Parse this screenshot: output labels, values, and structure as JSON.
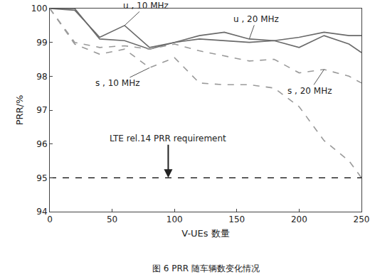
{
  "chart_data": {
    "type": "line",
    "caption": "图 6 PRR 随车辆数变化情况",
    "x_label": "V-UEs 数量",
    "y_label": "PRR/%",
    "x": [
      0,
      20,
      40,
      60,
      80,
      100,
      120,
      140,
      160,
      180,
      200,
      220,
      240,
      250
    ],
    "series": [
      {
        "name": "u , 10 MHz",
        "color": "#6a6a6a",
        "line_style": "solid",
        "values": [
          100,
          99.95,
          99.15,
          99.5,
          98.85,
          99.0,
          99.1,
          99.05,
          99.0,
          99.05,
          98.85,
          99.2,
          98.95,
          98.7
        ]
      },
      {
        "name": "u , 20 MHz",
        "color": "#6a6a6a",
        "line_style": "solid",
        "values": [
          100,
          100,
          99.1,
          99.05,
          98.8,
          99.0,
          99.2,
          99.3,
          99.1,
          99.05,
          99.15,
          99.3,
          99.2,
          99.2
        ]
      },
      {
        "name": "s , 10 MHz",
        "color": "#9a9a9a",
        "line_style": "dash",
        "values": [
          100,
          98.95,
          98.65,
          98.8,
          98.25,
          98.55,
          97.8,
          97.75,
          97.75,
          97.65,
          97.1,
          96.1,
          95.5,
          95.0
        ]
      },
      {
        "name": "s , 20 MHz",
        "color": "#9a9a9a",
        "line_style": "dash",
        "values": [
          100,
          99.0,
          98.85,
          98.9,
          98.8,
          98.95,
          98.75,
          98.6,
          98.45,
          98.5,
          98.1,
          98.2,
          98.0,
          97.8
        ]
      }
    ],
    "reference_line": {
      "value": 95,
      "label": "LTE rel.14 PRR requirement",
      "color": "#000000",
      "line_style": "dash"
    },
    "xlim": [
      0,
      250
    ],
    "xticks": [
      0,
      50,
      100,
      150,
      200,
      250
    ],
    "ylim": [
      94,
      100
    ],
    "yticks": [
      94,
      95,
      96,
      97,
      98,
      99,
      100
    ],
    "grid": false
  }
}
